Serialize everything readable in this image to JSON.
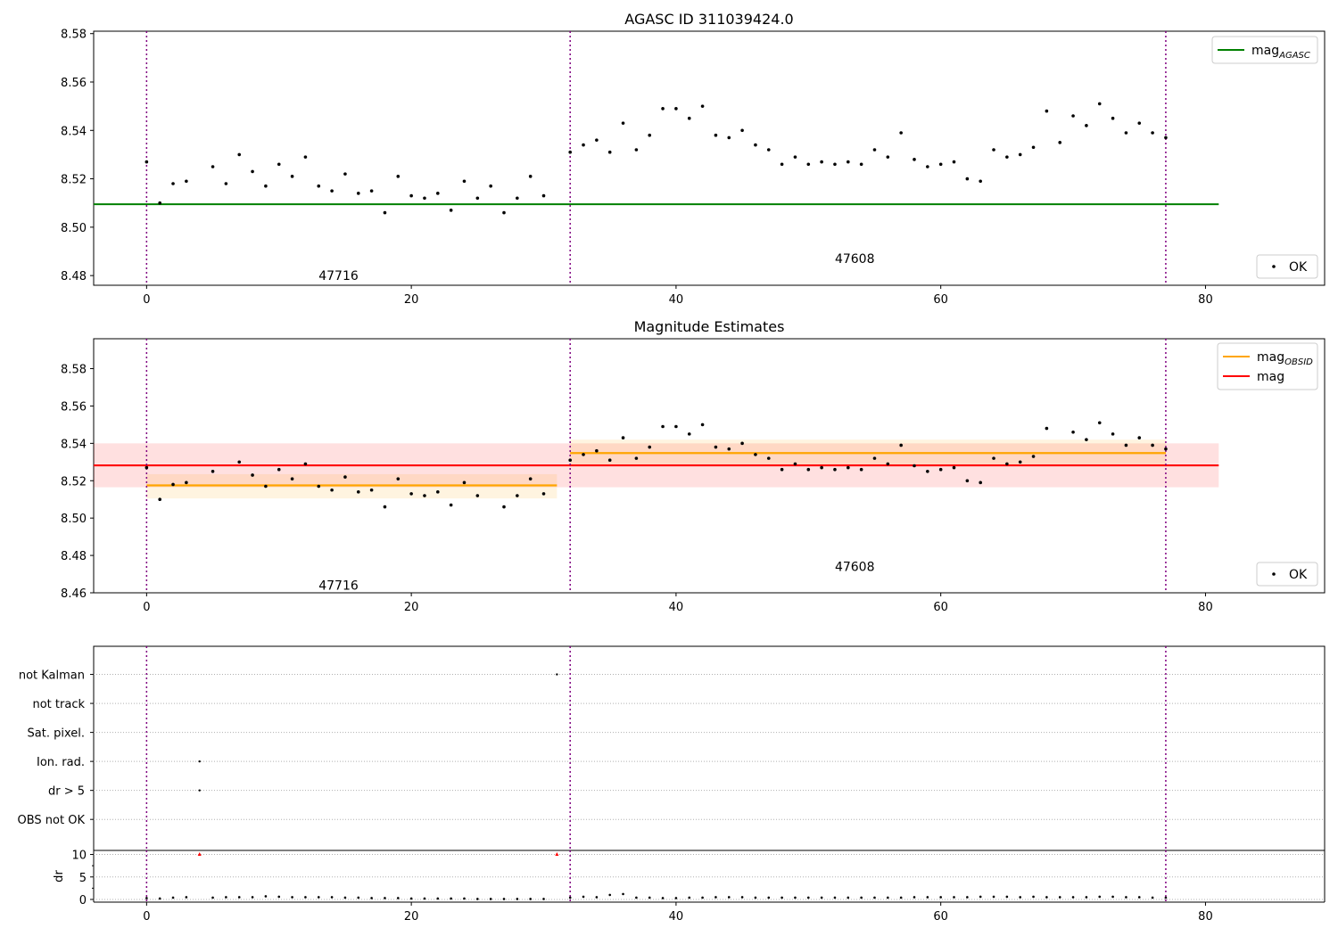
{
  "chart_data": [
    {
      "type": "scatter",
      "title": "AGASC ID 311039424.0",
      "xlim": [
        -4,
        89
      ],
      "ylim": [
        8.476,
        8.581
      ],
      "xticks": [
        0,
        20,
        40,
        60,
        80
      ],
      "yticks": [
        8.48,
        8.5,
        8.52,
        8.54,
        8.56,
        8.58
      ],
      "ytick_labels": [
        "8.48",
        "8.50",
        "8.52",
        "8.54",
        "8.56",
        "8.58"
      ],
      "obsid_boundaries": [
        0,
        32,
        77
      ],
      "obsid_labels": [
        {
          "text": "47716",
          "x": 14.5,
          "y": 8.48
        },
        {
          "text": "47608",
          "x": 53.5,
          "y": 8.487
        }
      ],
      "lines": [
        {
          "name": "mag_AGASC",
          "legend_main": "mag",
          "legend_sub": "AGASC",
          "color": "#008000",
          "x": [
            -4,
            81
          ],
          "y": 8.5095
        }
      ],
      "legends": {
        "lines_position": "upper right",
        "points_position": "lower right",
        "points_label": "OK"
      },
      "points": {
        "x": [
          0,
          1,
          2,
          3,
          5,
          6,
          7,
          8,
          9,
          10,
          11,
          12,
          13,
          14,
          15,
          16,
          17,
          18,
          19,
          20,
          21,
          22,
          23,
          24,
          25,
          26,
          27,
          28,
          29,
          30,
          32,
          33,
          34,
          35,
          36,
          37,
          38,
          39,
          40,
          41,
          42,
          43,
          44,
          45,
          46,
          47,
          48,
          49,
          50,
          51,
          52,
          53,
          54,
          55,
          56,
          57,
          58,
          59,
          60,
          61,
          62,
          63,
          64,
          65,
          66,
          67,
          68,
          69,
          70,
          71,
          72,
          73,
          74,
          75,
          76,
          77
        ],
        "y": [
          8.527,
          8.51,
          8.518,
          8.519,
          8.525,
          8.518,
          8.53,
          8.523,
          8.517,
          8.526,
          8.521,
          8.529,
          8.517,
          8.515,
          8.522,
          8.514,
          8.515,
          8.506,
          8.521,
          8.513,
          8.512,
          8.514,
          8.507,
          8.519,
          8.512,
          8.517,
          8.506,
          8.512,
          8.521,
          8.513,
          8.531,
          8.534,
          8.536,
          8.531,
          8.543,
          8.532,
          8.538,
          8.549,
          8.549,
          8.545,
          8.55,
          8.538,
          8.537,
          8.54,
          8.534,
          8.532,
          8.526,
          8.529,
          8.526,
          8.527,
          8.526,
          8.527,
          8.526,
          8.532,
          8.529,
          8.539,
          8.528,
          8.525,
          8.526,
          8.527,
          8.52,
          8.519,
          8.532,
          8.529,
          8.53,
          8.533,
          8.548,
          8.535,
          8.546,
          8.542,
          8.551,
          8.545,
          8.539,
          8.543,
          8.539,
          8.537
        ]
      }
    },
    {
      "type": "scatter",
      "title": "Magnitude Estimates",
      "xlim": [
        -4,
        89
      ],
      "ylim": [
        8.46,
        8.596
      ],
      "xticks": [
        0,
        20,
        40,
        60,
        80
      ],
      "yticks": [
        8.46,
        8.48,
        8.5,
        8.52,
        8.54,
        8.56,
        8.58
      ],
      "ytick_labels": [
        "8.46",
        "8.48",
        "8.50",
        "8.52",
        "8.54",
        "8.56",
        "8.58"
      ],
      "obsid_boundaries": [
        0,
        32,
        77
      ],
      "obsid_labels": [
        {
          "text": "47716",
          "x": 14.5,
          "y": 8.464
        },
        {
          "text": "47608",
          "x": 53.5,
          "y": 8.474
        }
      ],
      "bands": [
        {
          "x": [
            -4,
            81
          ],
          "y": [
            8.5165,
            8.54
          ],
          "color": "#ff0000",
          "opacity": 0.12
        },
        {
          "x": [
            0,
            31
          ],
          "y": [
            8.5105,
            8.5235
          ],
          "color": "#ffa500",
          "opacity": 0.12
        },
        {
          "x": [
            32,
            77
          ],
          "y": [
            8.5285,
            8.542
          ],
          "color": "#ffa500",
          "opacity": 0.12
        }
      ],
      "segments": [
        {
          "x": [
            0,
            31
          ],
          "y": 8.5175,
          "color": "#ffa500"
        },
        {
          "x": [
            32,
            77
          ],
          "y": 8.5348,
          "color": "#ffa500"
        },
        {
          "x": [
            -4,
            81
          ],
          "y": 8.5282,
          "color": "#ff0000"
        }
      ],
      "legend_items": [
        {
          "name": "mag_OBSID",
          "legend_main": "mag",
          "legend_sub": "OBSID",
          "color": "#ffa500"
        },
        {
          "name": "mag",
          "legend_main": "mag",
          "legend_sub": "",
          "color": "#ff0000"
        }
      ],
      "legends": {
        "lines_position": "upper right",
        "points_position": "lower right",
        "points_label": "OK"
      },
      "points": {
        "x": [
          0,
          1,
          2,
          3,
          5,
          7,
          8,
          9,
          10,
          11,
          12,
          13,
          14,
          15,
          16,
          17,
          18,
          19,
          20,
          21,
          22,
          23,
          24,
          25,
          27,
          28,
          29,
          30,
          32,
          33,
          34,
          35,
          36,
          37,
          38,
          39,
          40,
          41,
          42,
          43,
          44,
          45,
          46,
          47,
          48,
          49,
          50,
          51,
          52,
          53,
          54,
          55,
          56,
          57,
          58,
          59,
          60,
          61,
          62,
          63,
          64,
          65,
          66,
          67,
          68,
          70,
          71,
          72,
          73,
          74,
          75,
          76,
          77
        ],
        "y": [
          8.527,
          8.51,
          8.518,
          8.519,
          8.525,
          8.53,
          8.523,
          8.517,
          8.526,
          8.521,
          8.529,
          8.517,
          8.515,
          8.522,
          8.514,
          8.515,
          8.506,
          8.521,
          8.513,
          8.512,
          8.514,
          8.507,
          8.519,
          8.512,
          8.506,
          8.512,
          8.521,
          8.513,
          8.531,
          8.534,
          8.536,
          8.531,
          8.543,
          8.532,
          8.538,
          8.549,
          8.549,
          8.545,
          8.55,
          8.538,
          8.537,
          8.54,
          8.534,
          8.532,
          8.526,
          8.529,
          8.526,
          8.527,
          8.526,
          8.527,
          8.526,
          8.532,
          8.529,
          8.539,
          8.528,
          8.525,
          8.526,
          8.527,
          8.52,
          8.519,
          8.532,
          8.529,
          8.53,
          8.533,
          8.548,
          8.546,
          8.542,
          8.551,
          8.545,
          8.539,
          8.543,
          8.539,
          8.537
        ]
      }
    },
    {
      "type": "scatter",
      "title": "",
      "xlim": [
        -4,
        89
      ],
      "xticks": [
        0,
        20,
        40,
        60,
        80
      ],
      "obsid_boundaries": [
        0,
        32,
        77
      ],
      "flag_categories": [
        "not Kalman",
        "not track",
        "Sat. pixel.",
        "Ion. rad.",
        "dr > 5",
        "OBS not OK"
      ],
      "flags": [
        {
          "category": "not Kalman",
          "x": [
            31
          ]
        },
        {
          "category": "Ion. rad.",
          "x": [
            4
          ]
        },
        {
          "category": "dr > 5",
          "x": [
            4
          ]
        }
      ],
      "dr": {
        "ylabel": "dr",
        "ylim": [
          -0.6,
          10.9
        ],
        "yticks": [
          0,
          5,
          10
        ],
        "ytick_labels": [
          "0",
          "5",
          "10"
        ],
        "x": [
          0,
          1,
          2,
          3,
          5,
          6,
          7,
          8,
          9,
          10,
          11,
          12,
          13,
          14,
          15,
          16,
          17,
          18,
          19,
          20,
          21,
          22,
          23,
          24,
          25,
          26,
          27,
          28,
          29,
          30,
          32,
          33,
          34,
          35,
          36,
          37,
          38,
          39,
          40,
          41,
          42,
          43,
          44,
          45,
          46,
          47,
          48,
          49,
          50,
          51,
          52,
          53,
          54,
          55,
          56,
          57,
          58,
          59,
          60,
          61,
          62,
          63,
          64,
          65,
          66,
          67,
          68,
          69,
          70,
          71,
          72,
          73,
          74,
          75,
          76,
          77
        ],
        "y": [
          0.3,
          0.2,
          0.4,
          0.5,
          0.4,
          0.5,
          0.5,
          0.5,
          0.7,
          0.6,
          0.5,
          0.5,
          0.5,
          0.5,
          0.4,
          0.4,
          0.3,
          0.3,
          0.3,
          0.2,
          0.2,
          0.2,
          0.2,
          0.2,
          0.1,
          0.1,
          0.1,
          0.1,
          0.1,
          0.1,
          0.4,
          0.6,
          0.5,
          1.0,
          1.2,
          0.4,
          0.4,
          0.3,
          0.3,
          0.4,
          0.4,
          0.5,
          0.5,
          0.5,
          0.4,
          0.4,
          0.4,
          0.4,
          0.4,
          0.4,
          0.4,
          0.4,
          0.4,
          0.4,
          0.4,
          0.4,
          0.5,
          0.5,
          0.5,
          0.5,
          0.5,
          0.6,
          0.6,
          0.6,
          0.5,
          0.6,
          0.5,
          0.5,
          0.5,
          0.5,
          0.6,
          0.6,
          0.5,
          0.5,
          0.4,
          0.4
        ],
        "clipped": {
          "x": [
            4,
            31
          ],
          "y": [
            10,
            10
          ],
          "color": "#ff0000"
        }
      }
    }
  ]
}
